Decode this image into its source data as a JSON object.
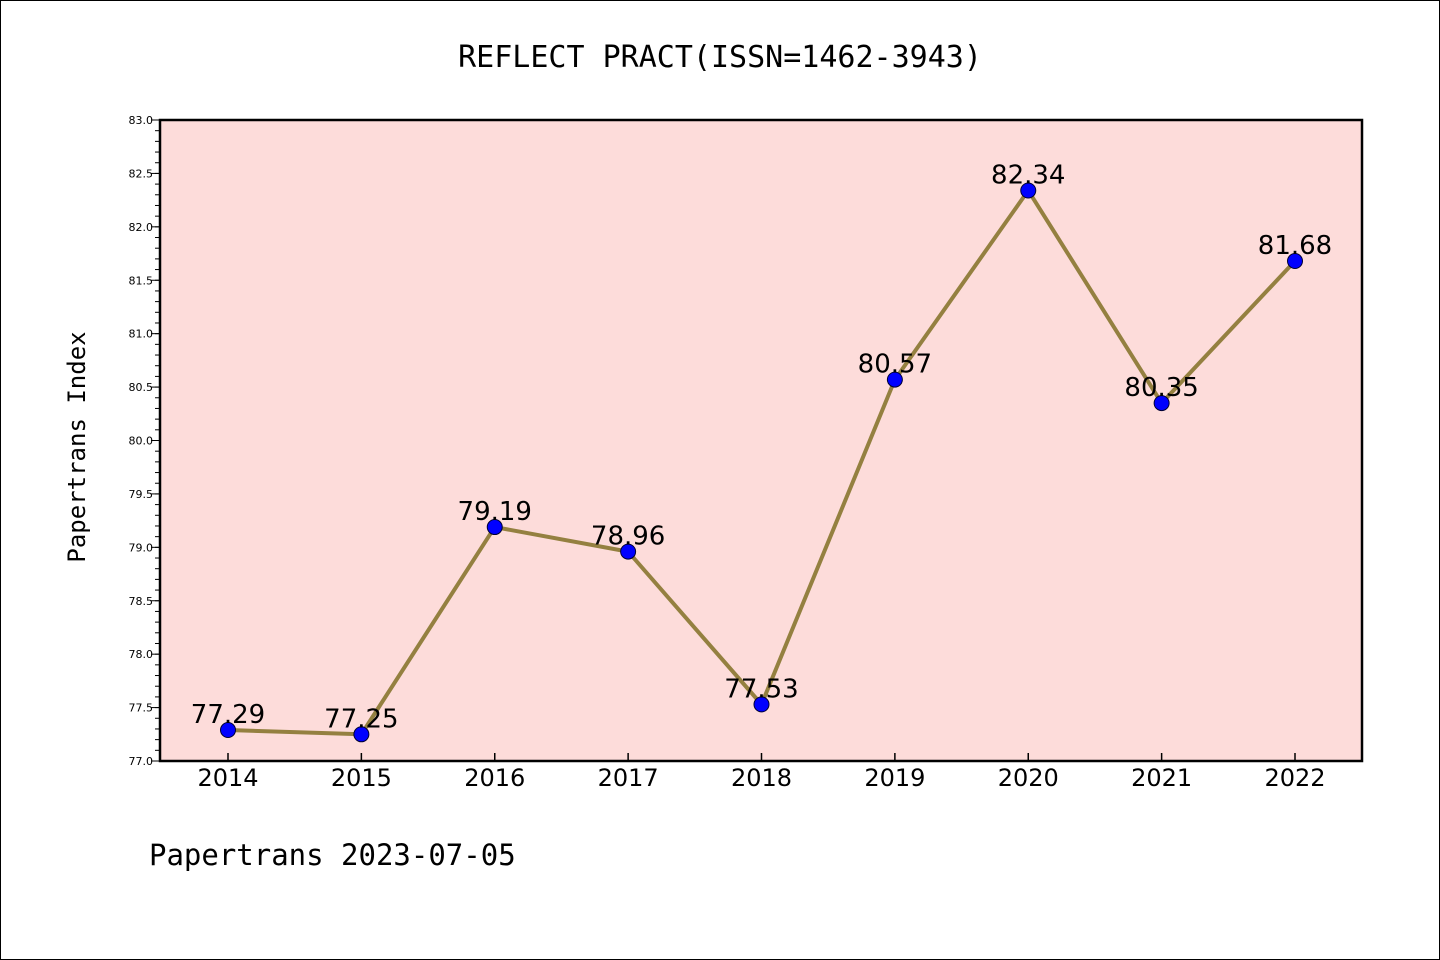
{
  "chart_data": {
    "type": "line",
    "title": "REFLECT PRACT(ISSN=1462-3943)",
    "ylabel": "Papertrans Index",
    "xlabel": "",
    "categories": [
      "2014",
      "2015",
      "2016",
      "2017",
      "2018",
      "2019",
      "2020",
      "2021",
      "2022"
    ],
    "series": [
      {
        "values": [
          77.29,
          77.25,
          79.19,
          78.96,
          77.53,
          80.57,
          82.34,
          80.35,
          81.68
        ],
        "data_labels": [
          "77.29",
          "77.25",
          "79.19",
          "78.96",
          "77.53",
          "80.57",
          "82.34",
          "80.35",
          "81.68"
        ]
      }
    ],
    "ylim": [
      77.0,
      83.0
    ],
    "yticks": [
      "77.0",
      "77.5",
      "78.0",
      "78.5",
      "79.0",
      "79.5",
      "80.0",
      "80.5",
      "81.0",
      "81.5",
      "82.0",
      "82.5",
      "83.0"
    ],
    "grid": false,
    "colors": {
      "plot_background": "#fddcda",
      "line": "#948040",
      "marker": "#0000ff"
    }
  },
  "footer": "Papertrans 2023-07-05"
}
